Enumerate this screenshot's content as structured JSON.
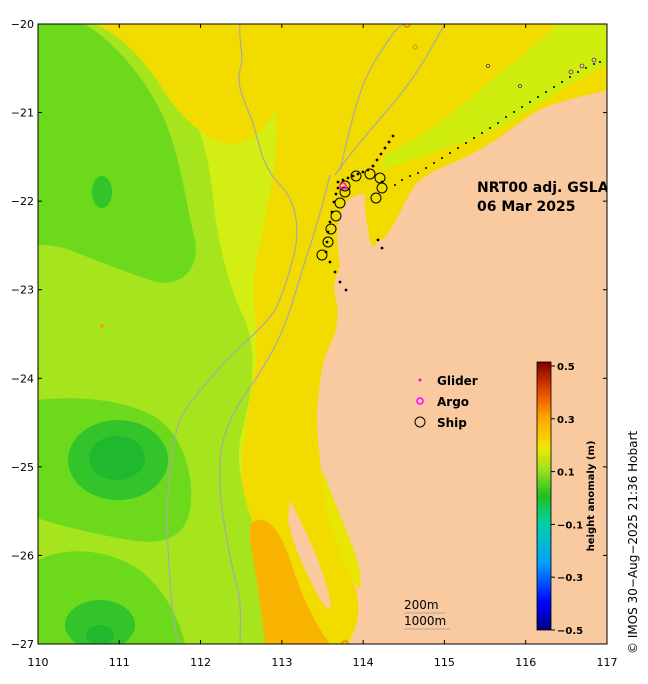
{
  "map": {
    "title_line1": "NRT00 adj. GSLA",
    "title_line2": "06 Mar 2025",
    "x_ticks": [
      "110",
      "111",
      "112",
      "113",
      "114",
      "115",
      "116",
      "117"
    ],
    "y_ticks": [
      "−20",
      "−21",
      "−22",
      "−23",
      "−24",
      "−25",
      "−26",
      "−27"
    ],
    "lon_range": [
      110,
      117
    ],
    "lat_range": [
      -27,
      -20
    ],
    "legend": {
      "glider": "Glider",
      "argo": "Argo",
      "ship": "Ship"
    },
    "colorbar": {
      "label": "height anomaly (m)",
      "ticks": [
        "0.5",
        "0.3",
        "0.1",
        "−0.1",
        "−0.3",
        "−0.5"
      ]
    },
    "scale": {
      "depth1": "200m",
      "depth2": "1000m"
    },
    "credit": "© IMOS 30−Aug−2025 21:36 Hobart"
  },
  "colors": {
    "land": "#f9c9a0",
    "sea_yellow": "#f2dc00",
    "sea_yellowgreen": "#cfee10",
    "sea_lightgreen": "#a4e41e",
    "sea_green": "#6ad81a",
    "sea_darkgreen": "#2fc228",
    "sea_orange": "#f7b600",
    "contour": "#a9a9a9"
  }
}
